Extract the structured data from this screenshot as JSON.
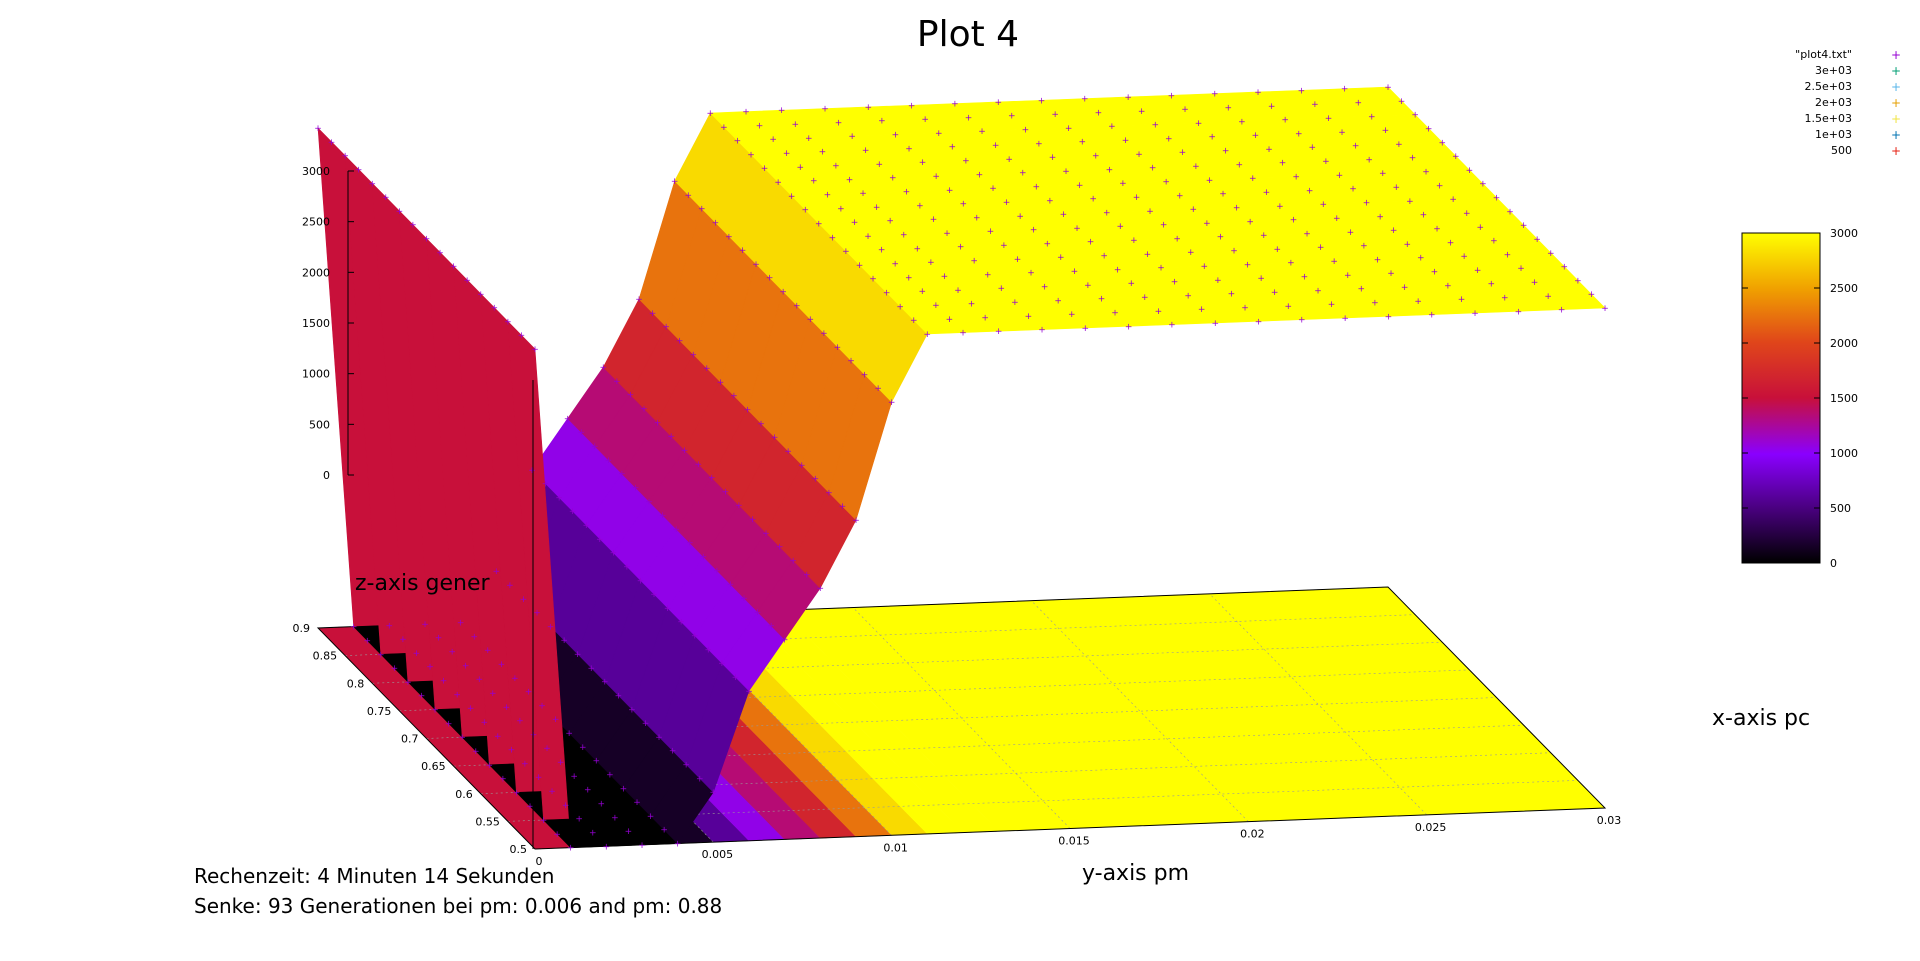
{
  "chart_data": {
    "type": "surface",
    "title": "Plot 4",
    "xlabel": "x-axis pc",
    "ylabel": "y-axis pm",
    "zlabel": "z-axis gener",
    "xlim": [
      0.5,
      0.9
    ],
    "ylim": [
      0,
      0.03
    ],
    "zlim": [
      0,
      3000
    ],
    "x_ticks": [
      "0.5",
      "0.55",
      "0.6",
      "0.65",
      "0.7",
      "0.75",
      "0.8",
      "0.85",
      "0.9"
    ],
    "y_ticks": [
      "0",
      "0.005",
      "0.01",
      "0.015",
      "0.02",
      "0.025",
      "0.03"
    ],
    "z_ticks": [
      "0",
      "500",
      "1000",
      "1500",
      "2000",
      "2500",
      "3000"
    ],
    "colorbar": {
      "min": 0,
      "max": 3000,
      "ticks": [
        "0",
        "500",
        "1000",
        "1500",
        "2000",
        "2500",
        "3000"
      ]
    },
    "grid": true,
    "legend_position": "top-right",
    "legend": [
      {
        "label": "\"plot4.txt\"",
        "color": "#9400d3"
      },
      {
        "label": "3e+03",
        "color": "#009e73"
      },
      {
        "label": "2.5e+03",
        "color": "#56b4e9"
      },
      {
        "label": "2e+03",
        "color": "#e69f00"
      },
      {
        "label": "1.5e+03",
        "color": "#f0e442"
      },
      {
        "label": "1e+03",
        "color": "#0072b2"
      },
      {
        "label": "500",
        "color": "#e51e10"
      }
    ],
    "profile_pm": [
      0,
      0.001,
      0.002,
      0.003,
      0.004,
      0.005,
      0.006,
      0.007,
      0.008,
      0.009,
      0.01,
      0.011,
      0.012,
      0.013,
      0.03
    ],
    "profile_gener": [
      3000,
      0,
      0,
      0,
      0,
      300,
      900,
      1200,
      1500,
      1900,
      2600,
      3000,
      3000,
      3000,
      3000
    ]
  },
  "info": {
    "line1": "Rechenzeit: 4 Minuten 14 Sekunden",
    "line2": "Senke: 93 Generationen bei pm: 0.006 and pm: 0.88"
  }
}
